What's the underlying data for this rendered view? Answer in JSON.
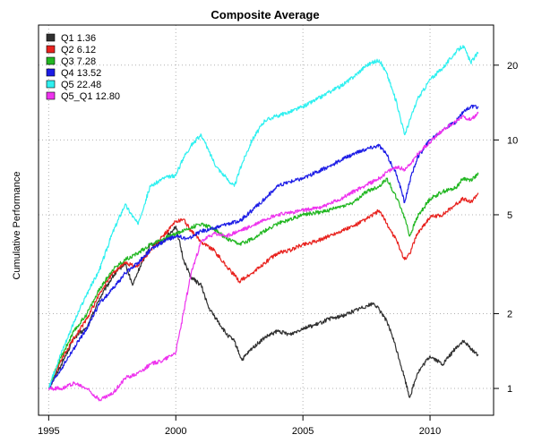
{
  "chart_data": {
    "type": "line",
    "title": "Composite Average",
    "xlabel": "",
    "ylabel": "Cumulative Performance",
    "y_scale": "log",
    "y_axis_side": "right",
    "xlim": [
      1994.6,
      2012.5
    ],
    "ylim": [
      0.78,
      29
    ],
    "x_ticks": [
      1995,
      2000,
      2005,
      2010
    ],
    "x_tick_labels": [
      "1995",
      "2000",
      "2005",
      "2010"
    ],
    "y_ticks": [
      1,
      2,
      5,
      10,
      20
    ],
    "y_tick_labels": [
      "1",
      "2",
      "5",
      "10",
      "20"
    ],
    "grid": true,
    "legend_position": "top-left",
    "legend": [
      {
        "label": "Q1  1.36",
        "color": "#303030"
      },
      {
        "label": "Q2  6.12",
        "color": "#e8221e"
      },
      {
        "label": "Q3  7.28",
        "color": "#22b722"
      },
      {
        "label": "Q4 13.52",
        "color": "#1c1ce6"
      },
      {
        "label": "Q5 22.48",
        "color": "#2ff0f0"
      },
      {
        "label": "Q5_Q1 12.80",
        "color": "#ee33ee"
      }
    ],
    "series": [
      {
        "name": "Q1",
        "color": "#303030",
        "x": [
          1995.0,
          1995.5,
          1996.0,
          1996.5,
          1997.0,
          1997.5,
          1998.0,
          1998.3,
          1998.6,
          1999.0,
          1999.5,
          2000.0,
          2000.3,
          2000.6,
          2001.0,
          2001.3,
          2001.6,
          2002.0,
          2002.3,
          2002.6,
          2003.0,
          2003.5,
          2004.0,
          2004.5,
          2005.0,
          2005.5,
          2006.0,
          2006.5,
          2007.0,
          2007.5,
          2007.8,
          2008.2,
          2008.5,
          2008.8,
          2009.0,
          2009.2,
          2009.5,
          2010.0,
          2010.5,
          2011.0,
          2011.3,
          2011.6,
          2011.9
        ],
        "y": [
          1.0,
          1.25,
          1.6,
          1.75,
          2.3,
          2.8,
          3.2,
          2.6,
          3.1,
          3.8,
          3.9,
          4.5,
          3.3,
          2.8,
          2.6,
          2.1,
          1.9,
          1.65,
          1.55,
          1.3,
          1.45,
          1.6,
          1.7,
          1.65,
          1.75,
          1.8,
          1.9,
          1.95,
          2.05,
          2.15,
          2.2,
          1.95,
          1.65,
          1.3,
          1.1,
          0.92,
          1.15,
          1.35,
          1.25,
          1.45,
          1.55,
          1.45,
          1.36
        ]
      },
      {
        "name": "Q2",
        "color": "#e8221e",
        "x": [
          1995.0,
          1995.5,
          1996.0,
          1996.5,
          1997.0,
          1997.5,
          1998.0,
          1998.5,
          1999.0,
          1999.5,
          2000.0,
          2000.3,
          2000.6,
          2001.0,
          2001.5,
          2002.0,
          2002.5,
          2003.0,
          2003.5,
          2004.0,
          2004.5,
          2005.0,
          2005.5,
          2006.0,
          2006.5,
          2007.0,
          2007.5,
          2008.0,
          2008.3,
          2008.7,
          2009.0,
          2009.2,
          2009.5,
          2010.0,
          2010.5,
          2011.0,
          2011.3,
          2011.6,
          2011.9
        ],
        "y": [
          1.0,
          1.3,
          1.6,
          1.9,
          2.4,
          2.9,
          3.2,
          3.1,
          3.6,
          4.1,
          4.7,
          4.8,
          4.3,
          3.9,
          3.6,
          3.1,
          2.7,
          2.9,
          3.2,
          3.5,
          3.6,
          3.8,
          3.9,
          4.1,
          4.3,
          4.5,
          4.8,
          5.2,
          4.6,
          3.9,
          3.3,
          3.5,
          4.2,
          4.9,
          5.0,
          5.5,
          5.8,
          5.6,
          6.12
        ]
      },
      {
        "name": "Q3",
        "color": "#22b722",
        "x": [
          1995.0,
          1995.5,
          1996.0,
          1996.5,
          1997.0,
          1997.5,
          1998.0,
          1998.5,
          1999.0,
          1999.5,
          2000.0,
          2000.5,
          2001.0,
          2001.5,
          2002.0,
          2002.5,
          2003.0,
          2003.5,
          2004.0,
          2004.5,
          2005.0,
          2005.5,
          2006.0,
          2006.5,
          2007.0,
          2007.5,
          2008.0,
          2008.3,
          2008.7,
          2009.0,
          2009.2,
          2009.5,
          2010.0,
          2010.5,
          2011.0,
          2011.3,
          2011.6,
          2011.9
        ],
        "y": [
          1.0,
          1.35,
          1.7,
          2.0,
          2.5,
          3.0,
          3.3,
          3.5,
          3.8,
          4.0,
          4.2,
          4.4,
          4.6,
          4.4,
          4.0,
          3.8,
          4.0,
          4.3,
          4.6,
          4.8,
          5.0,
          5.1,
          5.2,
          5.4,
          5.6,
          6.2,
          6.5,
          7.0,
          5.8,
          4.9,
          4.1,
          4.9,
          5.8,
          6.2,
          6.4,
          7.0,
          6.9,
          7.28
        ]
      },
      {
        "name": "Q4",
        "color": "#1c1ce6",
        "x": [
          1995.0,
          1995.5,
          1996.0,
          1996.5,
          1997.0,
          1997.5,
          1998.0,
          1998.5,
          1999.0,
          1999.5,
          2000.0,
          2000.5,
          2001.0,
          2001.5,
          2002.0,
          2002.5,
          2003.0,
          2003.5,
          2004.0,
          2004.5,
          2005.0,
          2005.5,
          2006.0,
          2006.5,
          2007.0,
          2007.5,
          2008.0,
          2008.3,
          2008.7,
          2009.0,
          2009.2,
          2009.5,
          2010.0,
          2010.5,
          2011.0,
          2011.3,
          2011.6,
          2011.9
        ],
        "y": [
          1.0,
          1.2,
          1.45,
          1.75,
          2.2,
          2.5,
          2.9,
          3.2,
          3.6,
          3.9,
          4.1,
          4.0,
          4.3,
          4.4,
          4.6,
          4.7,
          5.2,
          5.8,
          6.5,
          6.8,
          7.0,
          7.4,
          7.8,
          8.3,
          8.8,
          9.2,
          9.5,
          8.7,
          7.2,
          5.6,
          6.8,
          8.5,
          10.0,
          11.0,
          11.8,
          13.0,
          13.6,
          13.52
        ]
      },
      {
        "name": "Q5",
        "color": "#2ff0f0",
        "x": [
          1995.0,
          1995.5,
          1996.0,
          1996.5,
          1997.0,
          1997.5,
          1998.0,
          1998.5,
          1999.0,
          1999.5,
          2000.0,
          2000.3,
          2000.6,
          2001.0,
          2001.3,
          2001.6,
          2002.0,
          2002.3,
          2002.6,
          2003.0,
          2003.5,
          2004.0,
          2004.5,
          2005.0,
          2005.5,
          2006.0,
          2006.5,
          2007.0,
          2007.5,
          2008.0,
          2008.3,
          2008.7,
          2009.0,
          2009.5,
          2010.0,
          2010.5,
          2011.0,
          2011.3,
          2011.6,
          2011.9
        ],
        "y": [
          1.0,
          1.4,
          1.85,
          2.4,
          3.0,
          4.2,
          5.5,
          4.6,
          6.5,
          7.0,
          7.2,
          8.5,
          9.5,
          10.5,
          9.0,
          7.8,
          7.0,
          6.5,
          8.0,
          10.0,
          12.0,
          12.5,
          13.0,
          13.6,
          14.5,
          15.5,
          16.5,
          18.0,
          20.0,
          21.0,
          18.5,
          14.0,
          10.5,
          14.5,
          17.5,
          19.5,
          22.5,
          24.0,
          20.5,
          22.48
        ]
      },
      {
        "name": "Q5_Q1",
        "color": "#ee33ee",
        "x": [
          1995.0,
          1995.5,
          1996.0,
          1996.5,
          1997.0,
          1997.5,
          1998.0,
          1998.5,
          1999.0,
          1999.5,
          2000.0,
          2000.3,
          2000.6,
          2001.0,
          2001.5,
          2002.0,
          2002.5,
          2003.0,
          2003.5,
          2004.0,
          2004.5,
          2005.0,
          2005.5,
          2006.0,
          2006.5,
          2007.0,
          2007.5,
          2008.0,
          2008.3,
          2008.7,
          2009.0,
          2009.3,
          2009.6,
          2010.0,
          2010.5,
          2011.0,
          2011.3,
          2011.6,
          2011.9
        ],
        "y": [
          1.0,
          1.0,
          1.05,
          1.0,
          0.9,
          0.95,
          1.1,
          1.15,
          1.25,
          1.3,
          1.4,
          2.0,
          2.9,
          3.9,
          4.2,
          4.1,
          4.3,
          4.5,
          4.8,
          5.0,
          5.1,
          5.2,
          5.3,
          5.5,
          5.8,
          6.2,
          6.6,
          7.0,
          7.4,
          7.8,
          7.6,
          8.2,
          9.0,
          9.8,
          11.0,
          11.8,
          12.5,
          12.0,
          12.8
        ]
      }
    ]
  }
}
